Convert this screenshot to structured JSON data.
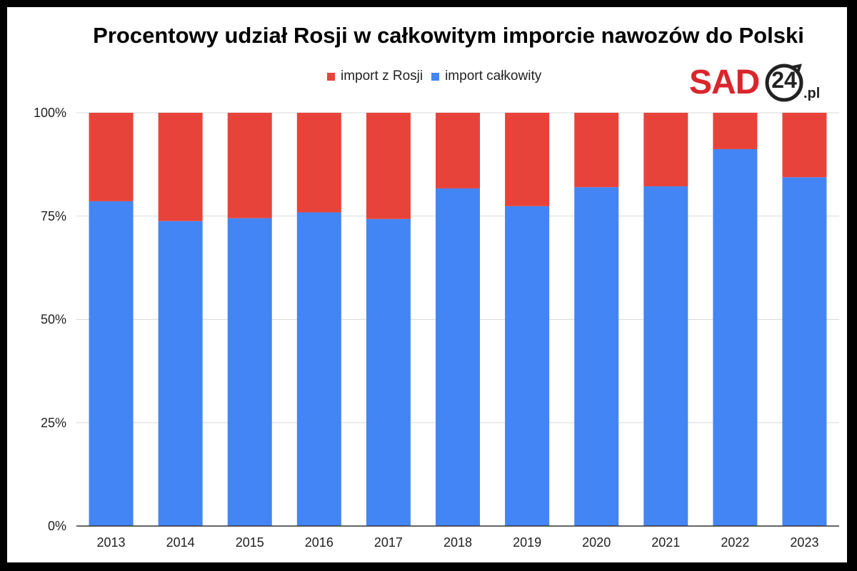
{
  "colors": {
    "russia": "#e8433a",
    "total": "#4385f4",
    "grid": "#d9d9d9",
    "axis": "#333333",
    "logo_red": "#d9262c"
  },
  "logo": {
    "text_main": "SAD",
    "text_num": "24",
    "text_suffix": ".pl"
  },
  "chart_data": {
    "type": "bar",
    "stacked": true,
    "percent": true,
    "title": "Procentowy udział Rosji w całkowitym imporcie nawozów do Polski",
    "xlabel": "",
    "ylabel": "",
    "ylim": [
      0,
      100
    ],
    "yticks": [
      "0%",
      "25%",
      "50%",
      "75%",
      "100%"
    ],
    "yticks_values": [
      0,
      25,
      50,
      75,
      100
    ],
    "grid": true,
    "legend_position": "top",
    "categories": [
      "2013",
      "2014",
      "2015",
      "2016",
      "2017",
      "2018",
      "2019",
      "2020",
      "2021",
      "2022",
      "2023"
    ],
    "series": [
      {
        "name": "import z Rosji",
        "color_key": "russia",
        "values": [
          21.4,
          26.2,
          25.5,
          24.1,
          25.7,
          18.3,
          22.6,
          18,
          17.8,
          8.8,
          15.6
        ]
      },
      {
        "name": "import całkowity",
        "color_key": "total",
        "values": [
          78.6,
          73.8,
          74.5,
          75.9,
          74.3,
          81.7,
          77.4,
          82,
          82.2,
          91.2,
          84.4
        ]
      }
    ]
  }
}
